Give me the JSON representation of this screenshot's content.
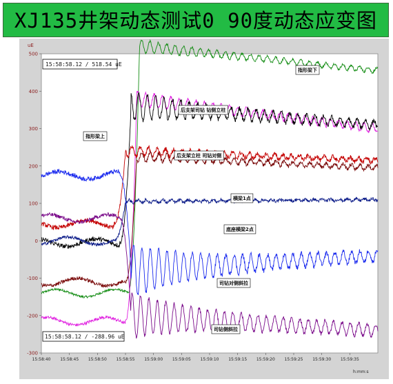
{
  "header": {
    "title": "XJ135井架动态测试0  90度动态应变图"
  },
  "chart_data": {
    "type": "line",
    "ylabel": "uE",
    "xlabel": "h:mm:s",
    "ylim": [
      -300,
      500
    ],
    "yticks": [
      500,
      400,
      300,
      200,
      100,
      0,
      -100,
      -200,
      -300
    ],
    "ytick_labels": [
      "500",
      "400",
      "300",
      "200",
      "100",
      "0",
      "-100",
      "-200",
      "-300"
    ],
    "x_tick_labels": [
      "15:58:40",
      "15:58:45",
      "15:58:50",
      "15:58:55",
      "15:59:00",
      "15:59:05",
      "15:59:10",
      "15:59:15",
      "15:59:20",
      "15:59:25",
      "15:59:30",
      "15:59:35"
    ],
    "xlim": [
      0,
      60
    ],
    "readout_top": "15:58:58.12  /   518.54 uE",
    "readout_bottom": "15:58:58.12  /   -288.96 uE",
    "series": [
      {
        "name": "指形梁下",
        "color": "#138c13",
        "pre": -140,
        "post_start": 520,
        "post_end": 455,
        "osc_amp": 18,
        "osc_decay": 0.35,
        "noise": 3,
        "t_rise": 17.5
      },
      {
        "name": "后支架司钻 钻侧立柱",
        "color": "#e020e0",
        "pre": -215,
        "post_start": 380,
        "post_end": 300,
        "osc_amp": 20,
        "osc_decay": 0.5,
        "noise": 4,
        "t_rise": 17
      },
      {
        "name": "指形梁上",
        "color": "#000000",
        "pre": -5,
        "post_start": 360,
        "post_end": 310,
        "osc_amp": 40,
        "osc_decay": 0.25,
        "noise": 6,
        "t_rise": 16
      },
      {
        "name": "后支架立柱  司钻对侧",
        "color": "#c40000",
        "pre": 45,
        "post_start": 240,
        "post_end": 215,
        "osc_amp": 14,
        "osc_decay": 0.4,
        "noise": 6,
        "t_rise": 15
      },
      {
        "name": "横梁1点",
        "color": "#7a0a0a",
        "pre": -110,
        "post_start": 225,
        "post_end": 195,
        "osc_amp": 12,
        "osc_decay": 0.5,
        "noise": 5,
        "t_rise": 17
      },
      {
        "name": "底座横梁2点",
        "color": "#0a1a88",
        "pre": 0,
        "post_start": 105,
        "post_end": 110,
        "osc_amp": 5,
        "osc_decay": 0.4,
        "noise": 4,
        "t_rise": 15
      },
      {
        "name": "司钻对侧斜拉",
        "color": "#1a2aee",
        "pre": 175,
        "post_start": -80,
        "post_end": -40,
        "osc_amp": 70,
        "osc_decay": 0.2,
        "noise": 6,
        "t_rise": 16
      },
      {
        "name": "司钻侧斜拉",
        "color": "#7a0a8a",
        "pre": 60,
        "post_start": -200,
        "post_end": -240,
        "osc_amp": 60,
        "osc_decay": 0.25,
        "noise": 5,
        "t_rise": 16
      }
    ]
  }
}
